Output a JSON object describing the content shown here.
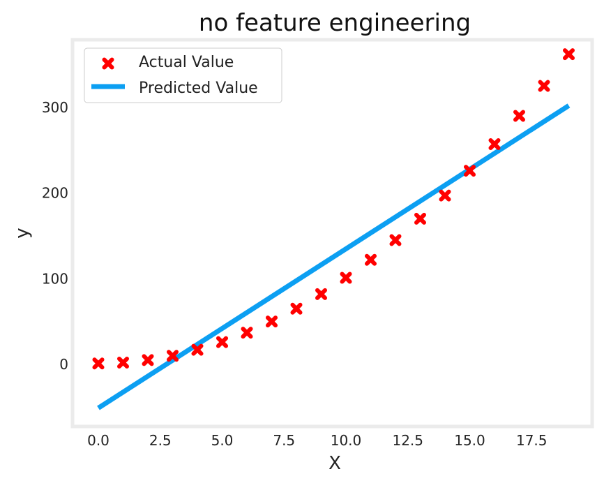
{
  "chart_data": {
    "type": "scatter",
    "title": "no feature engineering",
    "xlabel": "X",
    "ylabel": "y",
    "xlim": [
      -1,
      20
    ],
    "ylim": [
      -70,
      375
    ],
    "x_ticks": [
      0.0,
      2.5,
      5.0,
      7.5,
      10.0,
      12.5,
      15.0,
      17.5
    ],
    "x_tick_labels": [
      "0.0",
      "2.5",
      "5.0",
      "7.5",
      "10.0",
      "12.5",
      "15.0",
      "17.5"
    ],
    "y_ticks": [
      0,
      100,
      200,
      300
    ],
    "y_tick_labels": [
      "0",
      "100",
      "200",
      "300"
    ],
    "grid": false,
    "legend_position": "upper-left",
    "series": [
      {
        "name": "Actual Value",
        "kind": "scatter",
        "marker": "x",
        "color": "#ff0000",
        "x": [
          0,
          1,
          2,
          3,
          4,
          5,
          6,
          7,
          8,
          9,
          10,
          11,
          12,
          13,
          14,
          15,
          16,
          17,
          18,
          19
        ],
        "y": [
          1,
          2,
          5,
          10,
          17,
          26,
          37,
          50,
          65,
          82,
          101,
          122,
          145,
          170,
          197,
          226,
          257,
          290,
          325,
          362
        ]
      },
      {
        "name": "Predicted Value",
        "kind": "line",
        "color": "#0c9ff2",
        "x": [
          0,
          19
        ],
        "y": [
          -51,
          302
        ]
      }
    ]
  }
}
